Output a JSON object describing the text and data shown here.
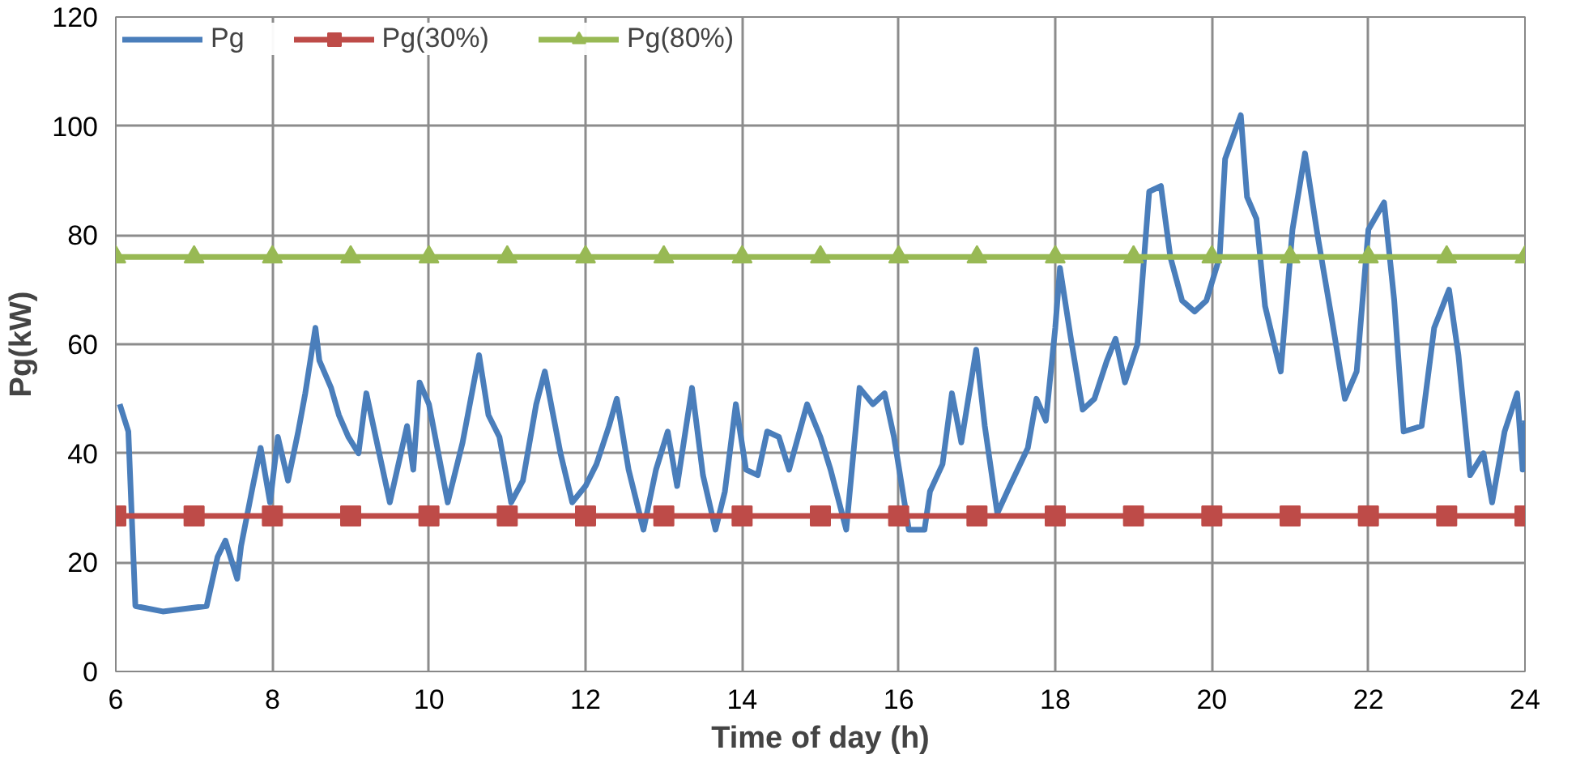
{
  "chart_data": {
    "type": "line",
    "xlabel": "Time of day (h)",
    "ylabel": "Pg(kW)",
    "xlim": [
      6,
      24
    ],
    "ylim": [
      0,
      120
    ],
    "xticks": [
      6,
      8,
      10,
      12,
      14,
      16,
      18,
      20,
      22,
      24
    ],
    "yticks": [
      0,
      20,
      40,
      60,
      80,
      100,
      120
    ],
    "grid": true,
    "legend": "top left",
    "series": [
      {
        "name": "Pg",
        "color": "#4a7ebb",
        "marker": "none",
        "x": [
          6.05,
          6.16,
          6.25,
          6.6,
          7.16,
          7.3,
          7.4,
          7.55,
          7.6,
          7.75,
          7.85,
          7.97,
          8.07,
          8.2,
          8.33,
          8.42,
          8.55,
          8.6,
          8.75,
          8.85,
          8.97,
          9.1,
          9.2,
          9.35,
          9.5,
          9.72,
          9.8,
          9.88,
          10.0,
          10.24,
          10.43,
          10.64,
          10.76,
          10.9,
          11.05,
          11.2,
          11.37,
          11.48,
          11.68,
          11.83,
          12.0,
          12.14,
          12.3,
          12.4,
          12.55,
          12.74,
          12.9,
          13.05,
          13.17,
          13.36,
          13.5,
          13.66,
          13.78,
          13.92,
          14.05,
          14.2,
          14.32,
          14.47,
          14.6,
          14.83,
          15.0,
          15.13,
          15.33,
          15.5,
          15.67,
          15.82,
          15.94,
          16.13,
          16.33,
          16.4,
          16.56,
          16.68,
          16.8,
          16.99,
          17.1,
          17.26,
          17.42,
          17.65,
          17.76,
          17.88,
          18.0,
          18.06,
          18.2,
          18.35,
          18.5,
          18.66,
          18.77,
          18.89,
          19.05,
          19.2,
          19.35,
          19.47,
          19.62,
          19.78,
          19.93,
          20.1,
          20.17,
          20.37,
          20.45,
          20.57,
          20.68,
          20.88,
          21.03,
          21.19,
          21.35,
          21.54,
          21.7,
          21.85,
          22.0,
          22.2,
          22.33,
          22.45,
          22.68,
          22.84,
          23.03,
          23.15,
          23.3,
          23.47,
          23.58,
          23.74,
          23.9,
          23.97,
          24.0
        ],
        "values": [
          49,
          44,
          12,
          11,
          12,
          21,
          24,
          17,
          23,
          34,
          41,
          31,
          43,
          35,
          44,
          51,
          63,
          57,
          52,
          47,
          43,
          40,
          51,
          41,
          31,
          45,
          37,
          53,
          49,
          31,
          42,
          58,
          47,
          43,
          31,
          35,
          49,
          55,
          40,
          31,
          34,
          38,
          45,
          50,
          37,
          26,
          37,
          44,
          34,
          52,
          36,
          26,
          33,
          49,
          37,
          36,
          44,
          43,
          37,
          49,
          43,
          37,
          26,
          52,
          49,
          51,
          43,
          26,
          26,
          33,
          38,
          51,
          42,
          59,
          45,
          29,
          34,
          41,
          50,
          46,
          63,
          74,
          61,
          48,
          50,
          57,
          61,
          53,
          60,
          88,
          89,
          76,
          68,
          66,
          68,
          76,
          94,
          102,
          87,
          83,
          67,
          55,
          81,
          95,
          80,
          64,
          50,
          55,
          81,
          86,
          68,
          44,
          45,
          63,
          70,
          58,
          36,
          40,
          31,
          44,
          51,
          37,
          46
        ]
      },
      {
        "name": "Pg(30%)",
        "color": "#be4b48",
        "marker": "square",
        "x": [
          6,
          7,
          8,
          9,
          10,
          11,
          12,
          13,
          14,
          15,
          16,
          17,
          18,
          19,
          20,
          21,
          22,
          23,
          24
        ],
        "values": [
          28.5,
          28.5,
          28.5,
          28.5,
          28.5,
          28.5,
          28.5,
          28.5,
          28.5,
          28.5,
          28.5,
          28.5,
          28.5,
          28.5,
          28.5,
          28.5,
          28.5,
          28.5,
          28.5
        ]
      },
      {
        "name": "Pg(80%)",
        "color": "#98b954",
        "marker": "triangle",
        "x": [
          6,
          7,
          8,
          9,
          10,
          11,
          12,
          13,
          14,
          15,
          16,
          17,
          18,
          19,
          20,
          21,
          22,
          23,
          24
        ],
        "values": [
          76,
          76,
          76,
          76,
          76,
          76,
          76,
          76,
          76,
          76,
          76,
          76,
          76,
          76,
          76,
          76,
          76,
          76,
          76
        ]
      }
    ]
  }
}
